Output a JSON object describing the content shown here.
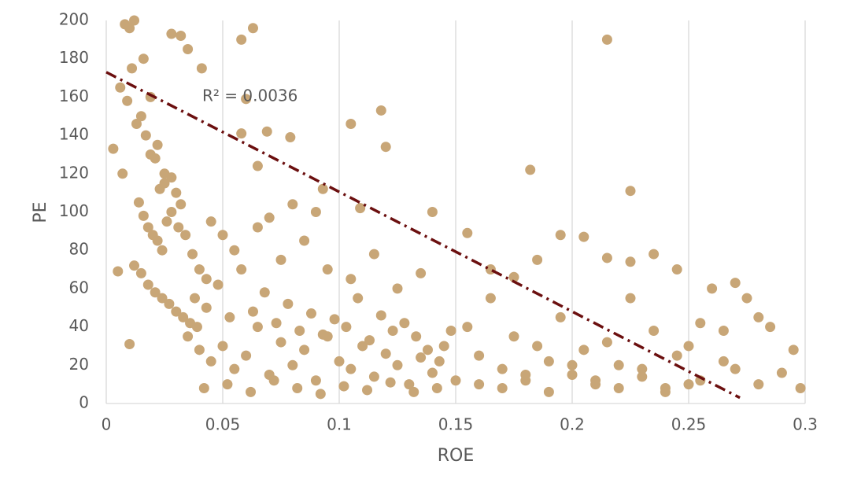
{
  "chart_data": {
    "type": "scatter",
    "x_label": "ROE",
    "y_label": "PE",
    "annotation": "R² = 0.0036",
    "xlim": [
      0,
      0.3
    ],
    "xticks": [
      0,
      0.05,
      0.1,
      0.15,
      0.2,
      0.25,
      0.3
    ],
    "ylim": [
      0,
      200
    ],
    "yticks": [
      0,
      20,
      40,
      60,
      80,
      100,
      120,
      140,
      160,
      180,
      200
    ],
    "grid": true,
    "series": [
      {
        "color": "#c8a677",
        "x": [
          0.008,
          0.012,
          0.01,
          0.028,
          0.032,
          0.035,
          0.041,
          0.058,
          0.063,
          0.06,
          0.215,
          0.118,
          0.105,
          0.12,
          0.079,
          0.069,
          0.058,
          0.182,
          0.225,
          0.003,
          0.007,
          0.005,
          0.01,
          0.109,
          0.14,
          0.093,
          0.065,
          0.006,
          0.009,
          0.011,
          0.013,
          0.015,
          0.017,
          0.019,
          0.021,
          0.023,
          0.025,
          0.014,
          0.016,
          0.018,
          0.02,
          0.022,
          0.024,
          0.026,
          0.028,
          0.03,
          0.032,
          0.012,
          0.015,
          0.018,
          0.021,
          0.024,
          0.027,
          0.03,
          0.033,
          0.036,
          0.039,
          0.016,
          0.019,
          0.022,
          0.025,
          0.028,
          0.031,
          0.034,
          0.037,
          0.04,
          0.043,
          0.035,
          0.04,
          0.045,
          0.05,
          0.055,
          0.06,
          0.065,
          0.07,
          0.075,
          0.08,
          0.085,
          0.09,
          0.095,
          0.1,
          0.105,
          0.11,
          0.115,
          0.12,
          0.125,
          0.13,
          0.135,
          0.14,
          0.145,
          0.15,
          0.038,
          0.043,
          0.048,
          0.053,
          0.058,
          0.063,
          0.068,
          0.073,
          0.078,
          0.083,
          0.088,
          0.093,
          0.098,
          0.103,
          0.108,
          0.113,
          0.118,
          0.123,
          0.128,
          0.133,
          0.138,
          0.143,
          0.148,
          0.042,
          0.052,
          0.062,
          0.072,
          0.082,
          0.092,
          0.102,
          0.112,
          0.122,
          0.132,
          0.142,
          0.055,
          0.065,
          0.075,
          0.085,
          0.095,
          0.105,
          0.115,
          0.125,
          0.135,
          0.045,
          0.05,
          0.07,
          0.08,
          0.09,
          0.155,
          0.16,
          0.165,
          0.17,
          0.175,
          0.18,
          0.185,
          0.19,
          0.195,
          0.2,
          0.205,
          0.21,
          0.215,
          0.22,
          0.225,
          0.23,
          0.235,
          0.24,
          0.245,
          0.25,
          0.255,
          0.26,
          0.265,
          0.27,
          0.275,
          0.28,
          0.285,
          0.29,
          0.295,
          0.298,
          0.155,
          0.165,
          0.175,
          0.185,
          0.195,
          0.205,
          0.215,
          0.225,
          0.235,
          0.245,
          0.255,
          0.265,
          0.27,
          0.28,
          0.16,
          0.17,
          0.18,
          0.19,
          0.2,
          0.21,
          0.22,
          0.23,
          0.24,
          0.25
        ],
        "values": [
          198,
          200,
          196,
          193,
          192,
          185,
          175,
          190,
          196,
          159,
          190,
          153,
          146,
          134,
          139,
          142,
          141,
          122,
          111,
          133,
          120,
          69,
          31,
          102,
          100,
          112,
          124,
          165,
          158,
          175,
          146,
          150,
          140,
          130,
          128,
          112,
          115,
          105,
          98,
          92,
          88,
          85,
          80,
          95,
          100,
          110,
          104,
          72,
          68,
          62,
          58,
          55,
          52,
          48,
          45,
          42,
          40,
          180,
          160,
          135,
          120,
          118,
          92,
          88,
          78,
          70,
          65,
          35,
          28,
          22,
          30,
          18,
          25,
          40,
          15,
          32,
          20,
          28,
          12,
          35,
          22,
          18,
          30,
          14,
          26,
          20,
          10,
          24,
          16,
          30,
          12,
          55,
          50,
          62,
          45,
          70,
          48,
          58,
          42,
          52,
          38,
          47,
          36,
          44,
          40,
          55,
          33,
          46,
          38,
          42,
          35,
          28,
          22,
          38,
          8,
          10,
          6,
          12,
          8,
          5,
          9,
          7,
          11,
          6,
          8,
          80,
          92,
          75,
          85,
          70,
          65,
          78,
          60,
          68,
          95,
          88,
          97,
          104,
          100,
          40,
          25,
          55,
          18,
          35,
          12,
          30,
          22,
          45,
          15,
          28,
          10,
          32,
          20,
          55,
          14,
          38,
          8,
          25,
          30,
          12,
          60,
          22,
          18,
          55,
          10,
          40,
          16,
          28,
          8,
          89,
          70,
          66,
          75,
          88,
          87,
          76,
          74,
          78,
          70,
          42,
          38,
          63,
          45,
          10,
          8,
          15,
          6,
          20,
          12,
          8,
          18,
          6,
          10
        ]
      }
    ],
    "trendline": {
      "x": [
        0,
        0.272
      ],
      "values": [
        173,
        3
      ],
      "color": "#6b0f0f"
    }
  }
}
